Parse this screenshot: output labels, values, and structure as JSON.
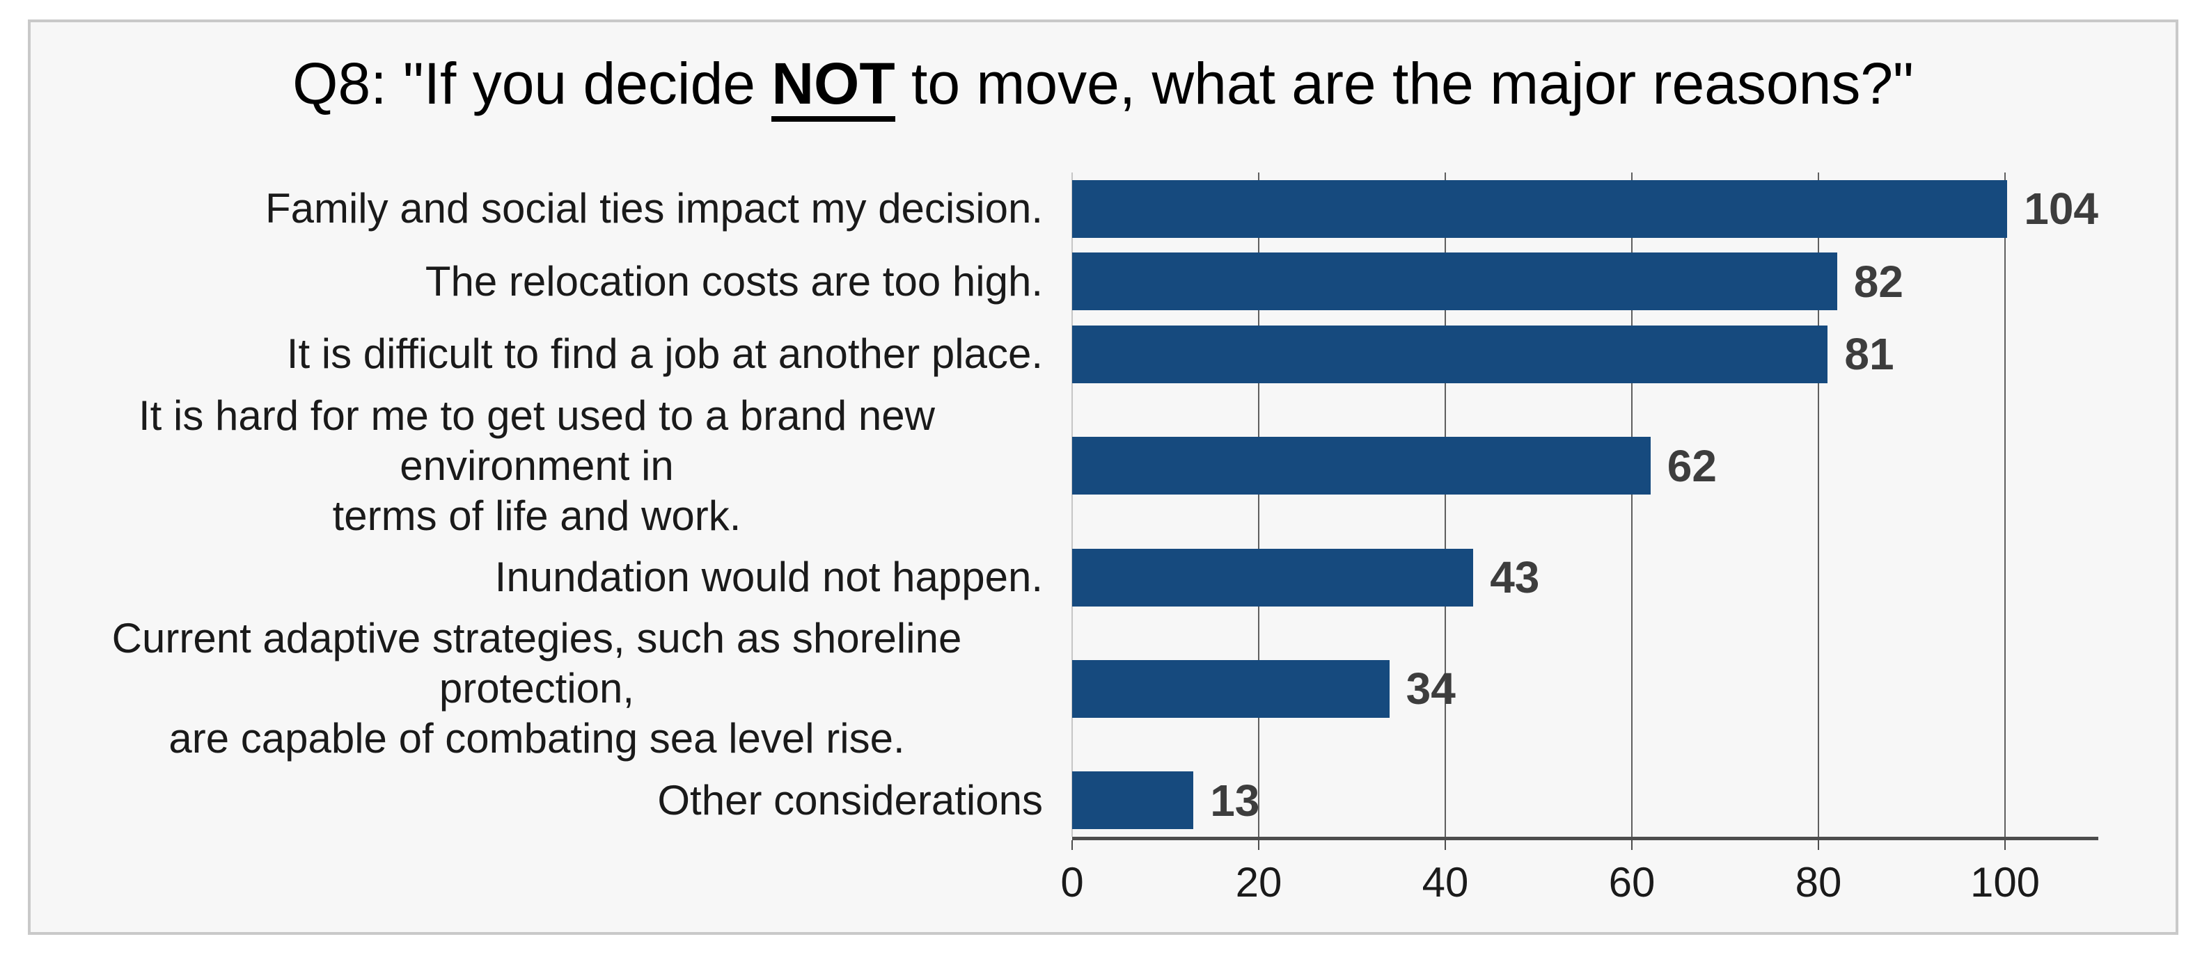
{
  "title": {
    "prefix": "Q8: \"If you decide ",
    "emphasis": "NOT",
    "suffix": " to move, what are the major reasons?\""
  },
  "chart_data": {
    "type": "bar",
    "orientation": "horizontal",
    "title": "Q8: \"If you decide NOT to move, what are the major reasons?\"",
    "categories": [
      "Family and social ties impact my decision.",
      "The relocation costs are too high.",
      "It is difficult to find a job at another place.",
      "It is hard for me to get used to a brand new environment in\nterms of life and work.",
      "Inundation would not happen.",
      "Current adaptive strategies, such as shoreline protection,\nare capable of combating sea level rise.",
      "Other considerations"
    ],
    "values": [
      104,
      82,
      81,
      62,
      43,
      34,
      13
    ],
    "xticks": [
      0,
      20,
      40,
      60,
      80,
      100
    ],
    "xlim": [
      0,
      110
    ],
    "grid": true,
    "legend_position": "none",
    "xlabel": "",
    "ylabel": ""
  },
  "colors": {
    "bar": "#164a7e",
    "gridline": "#5f5f5f",
    "zero_line": "#c6c6c6",
    "axis_line": "#4d4d4d",
    "value_label": "#3d3d3d",
    "tick_label": "#1a1a1a",
    "category_label": "#1a1a1a",
    "plot_background": "#f7f7f7",
    "frame_border": "#c9c9c9",
    "page_background": "#ffffff"
  }
}
